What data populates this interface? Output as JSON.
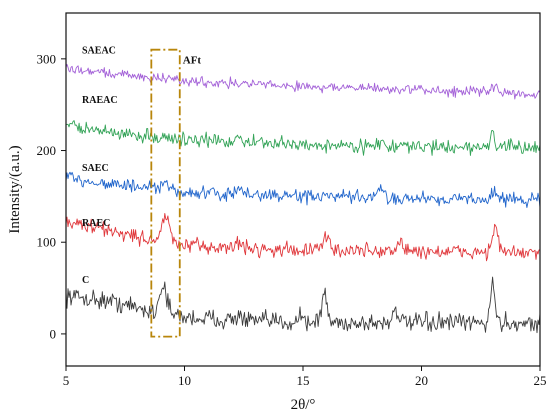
{
  "chart_data": {
    "type": "line",
    "xlabel": "2θ/°",
    "ylabel": "Intensity/(a.u.)",
    "xlim": [
      5,
      25
    ],
    "ylim": [
      -35,
      350
    ],
    "xticks": [
      5,
      10,
      15,
      20,
      25
    ],
    "yticks": [
      0,
      100,
      200,
      300
    ],
    "grid": false,
    "legend": "labels placed beside each curve",
    "annotation": {
      "label": "AFt",
      "x_range": [
        8.6,
        9.8
      ],
      "y_range": [
        -3,
        310
      ],
      "color": "#b8860b"
    },
    "series": [
      {
        "name": "C",
        "color": "#3d3d3d",
        "label_y": 60,
        "noise": 11,
        "baseline": [
          [
            5,
            42
          ],
          [
            7,
            35
          ],
          [
            8.5,
            25
          ],
          [
            10,
            18
          ],
          [
            13,
            14
          ],
          [
            16,
            12
          ],
          [
            20,
            12
          ],
          [
            25,
            12
          ]
        ],
        "peaks": [
          [
            9.1,
            32,
            0.15
          ],
          [
            12.3,
            6,
            0.1
          ],
          [
            14.9,
            10,
            0.1
          ],
          [
            15.9,
            30,
            0.12
          ],
          [
            18.9,
            16,
            0.12
          ],
          [
            23.0,
            42,
            0.1
          ]
        ]
      },
      {
        "name": "RAEC",
        "color": "#e0383c",
        "label_y": 122,
        "noise": 9,
        "baseline": [
          [
            5,
            122
          ],
          [
            7,
            112
          ],
          [
            8.5,
            103
          ],
          [
            10,
            96
          ],
          [
            14,
            92
          ],
          [
            20,
            90
          ],
          [
            25,
            88
          ]
        ],
        "peaks": [
          [
            9.2,
            26,
            0.18
          ],
          [
            12.3,
            8,
            0.1
          ],
          [
            16.0,
            16,
            0.12
          ],
          [
            19.1,
            10,
            0.12
          ],
          [
            23.1,
            28,
            0.12
          ]
        ]
      },
      {
        "name": "SAEC",
        "color": "#2266cc",
        "label_y": 182,
        "noise": 8,
        "baseline": [
          [
            5,
            170
          ],
          [
            8,
            160
          ],
          [
            10,
            154
          ],
          [
            15,
            150
          ],
          [
            20,
            148
          ],
          [
            25,
            146
          ]
        ],
        "peaks": [
          [
            9.2,
            6,
            0.2
          ],
          [
            12.4,
            6,
            0.1
          ],
          [
            18.3,
            10,
            0.1
          ],
          [
            23.1,
            12,
            0.1
          ]
        ]
      },
      {
        "name": "RAEAC",
        "color": "#33a357",
        "label_y": 256,
        "noise": 8,
        "baseline": [
          [
            5,
            228
          ],
          [
            7,
            219
          ],
          [
            10,
            212
          ],
          [
            15,
            206
          ],
          [
            20,
            204
          ],
          [
            25,
            203
          ]
        ],
        "peaks": [
          [
            12.3,
            8,
            0.1
          ],
          [
            18.2,
            6,
            0.1
          ],
          [
            23.0,
            16,
            0.1
          ]
        ]
      },
      {
        "name": "SAEAC",
        "color": "#a462d8",
        "label_y": 310,
        "noise": 6,
        "baseline": [
          [
            5,
            290
          ],
          [
            7,
            284
          ],
          [
            10,
            276
          ],
          [
            15,
            270
          ],
          [
            20,
            266
          ],
          [
            25,
            262
          ]
        ],
        "peaks": [
          [
            23.1,
            8,
            0.12
          ]
        ]
      }
    ]
  }
}
